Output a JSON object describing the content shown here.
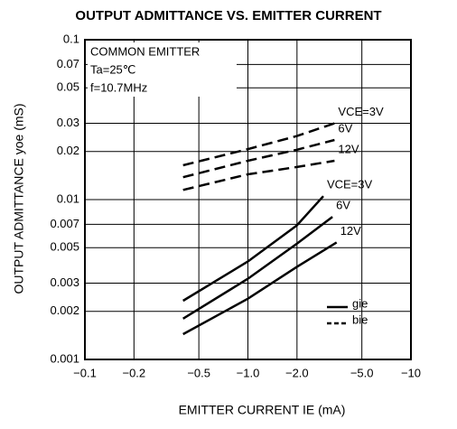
{
  "chart_data": {
    "type": "line",
    "title": "OUTPUT ADMITTANCE VS. EMITTER CURRENT",
    "x_label": "EMITTER CURRENT   IE (mA)",
    "y_label": "OUTPUT ADMITTANCE   yoe (mS)",
    "annotations": [
      "COMMON EMITTER",
      "Ta=25℃",
      "f=10.7MHz"
    ],
    "log_x": true,
    "log_y": true,
    "grid": true,
    "xlim": [
      -0.1,
      -10
    ],
    "ylim": [
      0.001,
      0.1
    ],
    "xticks": [
      {
        "value": -0.1,
        "label": "−0.1"
      },
      {
        "value": -0.2,
        "label": "−0.2"
      },
      {
        "value": -0.5,
        "label": "−0.5"
      },
      {
        "value": -1.0,
        "label": "−1.0"
      },
      {
        "value": -2.0,
        "label": "−2.0"
      },
      {
        "value": -5.0,
        "label": "−5.0"
      },
      {
        "value": -10,
        "label": "−10"
      }
    ],
    "yticks": [
      0.1,
      0.07,
      0.05,
      0.03,
      0.02,
      0.01,
      0.007,
      0.005,
      0.003,
      0.002,
      0.001
    ],
    "legend": [
      {
        "name": "gie",
        "style": "solid"
      },
      {
        "name": "bie",
        "style": "dashed"
      }
    ],
    "series": [
      {
        "name": "VCE=3V",
        "style": "dashed",
        "color": "#000000",
        "x": [
          -0.4,
          -1,
          -2,
          -3.4
        ],
        "values": [
          0.0164,
          0.0207,
          0.025,
          0.03
        ]
      },
      {
        "name": "6V",
        "style": "dashed",
        "color": "#000000",
        "x": [
          -0.4,
          -1,
          -2,
          -3.4
        ],
        "values": [
          0.0138,
          0.0175,
          0.0205,
          0.0236
        ]
      },
      {
        "name": "12V",
        "style": "dashed",
        "color": "#000000",
        "x": [
          -0.4,
          -1,
          -2,
          -3.4
        ],
        "values": [
          0.0115,
          0.0144,
          0.016,
          0.0175
        ]
      },
      {
        "name": "VCE=3V",
        "style": "solid",
        "color": "#000000",
        "x": [
          -0.4,
          -1,
          -2,
          -2.9
        ],
        "values": [
          0.00233,
          0.0041,
          0.0069,
          0.0105
        ]
      },
      {
        "name": "6V",
        "style": "solid",
        "color": "#000000",
        "x": [
          -0.4,
          -1,
          -2,
          -3.3
        ],
        "values": [
          0.0018,
          0.0032,
          0.0053,
          0.0078
        ]
      },
      {
        "name": "12V",
        "style": "solid",
        "color": "#000000",
        "x": [
          -0.4,
          -1,
          -2,
          -3.5
        ],
        "values": [
          0.00144,
          0.0024,
          0.0038,
          0.0054
        ]
      }
    ]
  }
}
